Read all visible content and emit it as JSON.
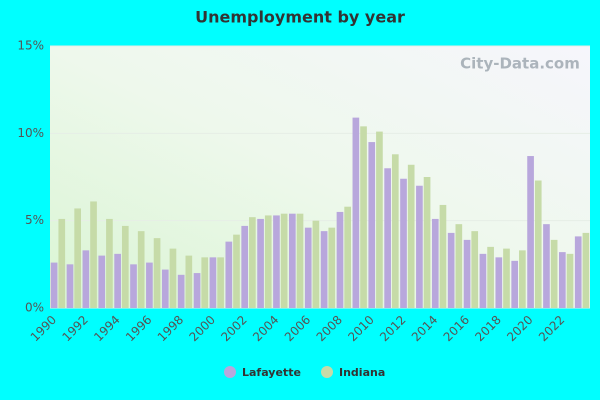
{
  "chart_data": {
    "type": "bar",
    "title": "Unemployment by year",
    "watermark": "City-Data.com",
    "categories": [
      "1990",
      null,
      "1992",
      null,
      "1994",
      null,
      "1996",
      null,
      "1998",
      null,
      "2000",
      null,
      "2002",
      null,
      "2004",
      null,
      "2006",
      null,
      "2008",
      null,
      "2010",
      null,
      "2012",
      null,
      "2014",
      null,
      "2016",
      null,
      "2018",
      null,
      "2020",
      null,
      "2022",
      null
    ],
    "series": [
      {
        "name": "Lafayette",
        "color": "#b8a7dc",
        "values": [
          2.6,
          2.5,
          3.3,
          3.0,
          3.1,
          2.5,
          2.6,
          2.2,
          1.9,
          2.0,
          2.9,
          3.8,
          4.7,
          5.1,
          5.3,
          5.4,
          4.6,
          4.4,
          5.5,
          10.9,
          9.5,
          8.0,
          7.4,
          7.0,
          5.1,
          4.3,
          3.9,
          3.1,
          2.9,
          2.7,
          8.7,
          4.8,
          3.2,
          4.1
        ]
      },
      {
        "name": "Indiana",
        "color": "#c6dba8",
        "values": [
          5.1,
          5.7,
          6.1,
          5.1,
          4.7,
          4.4,
          4.0,
          3.4,
          3.0,
          2.9,
          2.9,
          4.2,
          5.2,
          5.3,
          5.4,
          5.4,
          5.0,
          4.6,
          5.8,
          10.4,
          10.1,
          8.8,
          8.2,
          7.5,
          5.9,
          4.8,
          4.4,
          3.5,
          3.4,
          3.3,
          7.3,
          3.9,
          3.1,
          4.3
        ]
      }
    ],
    "ylim": [
      0,
      15
    ],
    "yticks": [
      {
        "value": 0,
        "label": "0%"
      },
      {
        "value": 5,
        "label": "5%"
      },
      {
        "value": 10,
        "label": "10%"
      },
      {
        "value": 15,
        "label": "15%"
      }
    ],
    "grid": true
  }
}
